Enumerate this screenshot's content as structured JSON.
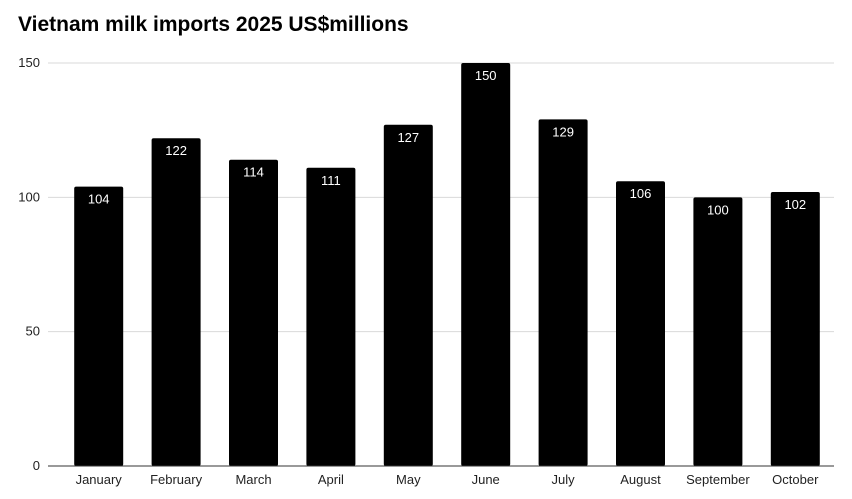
{
  "chart_data": {
    "type": "bar",
    "title": "Vietnam milk imports 2025 US$millions",
    "xlabel": "",
    "ylabel": "",
    "categories": [
      "January",
      "February",
      "March",
      "April",
      "May",
      "June",
      "July",
      "August",
      "September",
      "October"
    ],
    "values": [
      104,
      122,
      114,
      111,
      127,
      150,
      129,
      106,
      100,
      102
    ],
    "ylim": [
      0,
      150
    ],
    "yticks": [
      0,
      50,
      100,
      150
    ],
    "grid": true,
    "legend": "none",
    "bar_color": "#000000",
    "label_color": "#ffffff",
    "gridline_color": "#d9d9d9",
    "axis_color": "#333333"
  }
}
